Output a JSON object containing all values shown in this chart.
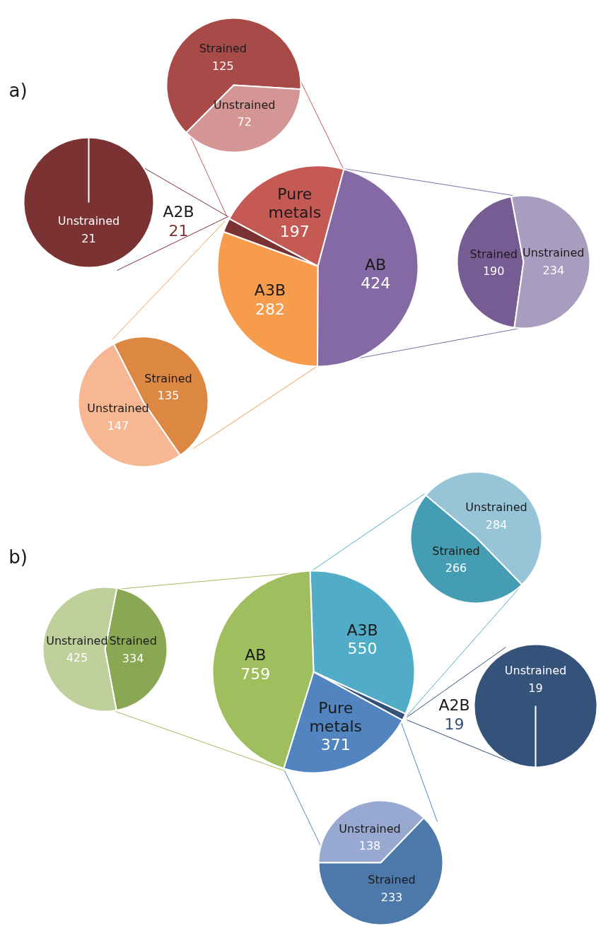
{
  "chart_data": [
    {
      "type": "pie",
      "title": "a)",
      "categories": [
        "AB",
        "A3B",
        "A2B",
        "Pure metals"
      ],
      "values": [
        424,
        282,
        21,
        197
      ],
      "colors": [
        "#8469a5",
        "#f79b4c",
        "#7b3232",
        "#c55a55"
      ],
      "data_labels": true
    },
    {
      "type": "pie",
      "categories": [
        "Strained",
        "Unstrained"
      ],
      "values": [
        125,
        72
      ],
      "colors": [
        "#a84a48",
        "#d49595"
      ],
      "data_labels": true
    },
    {
      "type": "pie",
      "categories": [
        "Unstrained"
      ],
      "values": [
        21
      ],
      "colors": [
        "#7b3232"
      ],
      "data_labels": true
    },
    {
      "type": "pie",
      "categories": [
        "Strained",
        "Unstrained"
      ],
      "values": [
        190,
        234
      ],
      "colors": [
        "#775c94",
        "#a99dbf"
      ],
      "data_labels": true
    },
    {
      "type": "pie",
      "categories": [
        "Strained",
        "Unstrained"
      ],
      "values": [
        135,
        147
      ],
      "colors": [
        "#dc8843",
        "#f7b793"
      ],
      "data_labels": true
    },
    {
      "type": "pie",
      "title": "b)",
      "categories": [
        "A3B",
        "A2B",
        "Pure metals",
        "AB"
      ],
      "values": [
        550,
        19,
        371,
        759
      ],
      "colors": [
        "#51adc7",
        "#34527a",
        "#5285c0",
        "#9fbe5d"
      ],
      "data_labels": true
    },
    {
      "type": "pie",
      "categories": [
        "Strained",
        "Unstrained"
      ],
      "values": [
        334,
        425
      ],
      "colors": [
        "#8aa854",
        "#bfcf9c"
      ],
      "data_labels": true
    },
    {
      "type": "pie",
      "categories": [
        "Unstrained",
        "Strained"
      ],
      "values": [
        284,
        266
      ],
      "colors": [
        "#97c4d6",
        "#459db3"
      ],
      "data_labels": true
    },
    {
      "type": "pie",
      "categories": [
        "Unstrained"
      ],
      "values": [
        19
      ],
      "colors": [
        "#34527a"
      ],
      "data_labels": true
    },
    {
      "type": "pie",
      "categories": [
        "Unstrained",
        "Strained"
      ],
      "values": [
        138,
        233
      ],
      "colors": [
        "#97a9d0",
        "#4c79aa"
      ],
      "data_labels": true
    }
  ]
}
